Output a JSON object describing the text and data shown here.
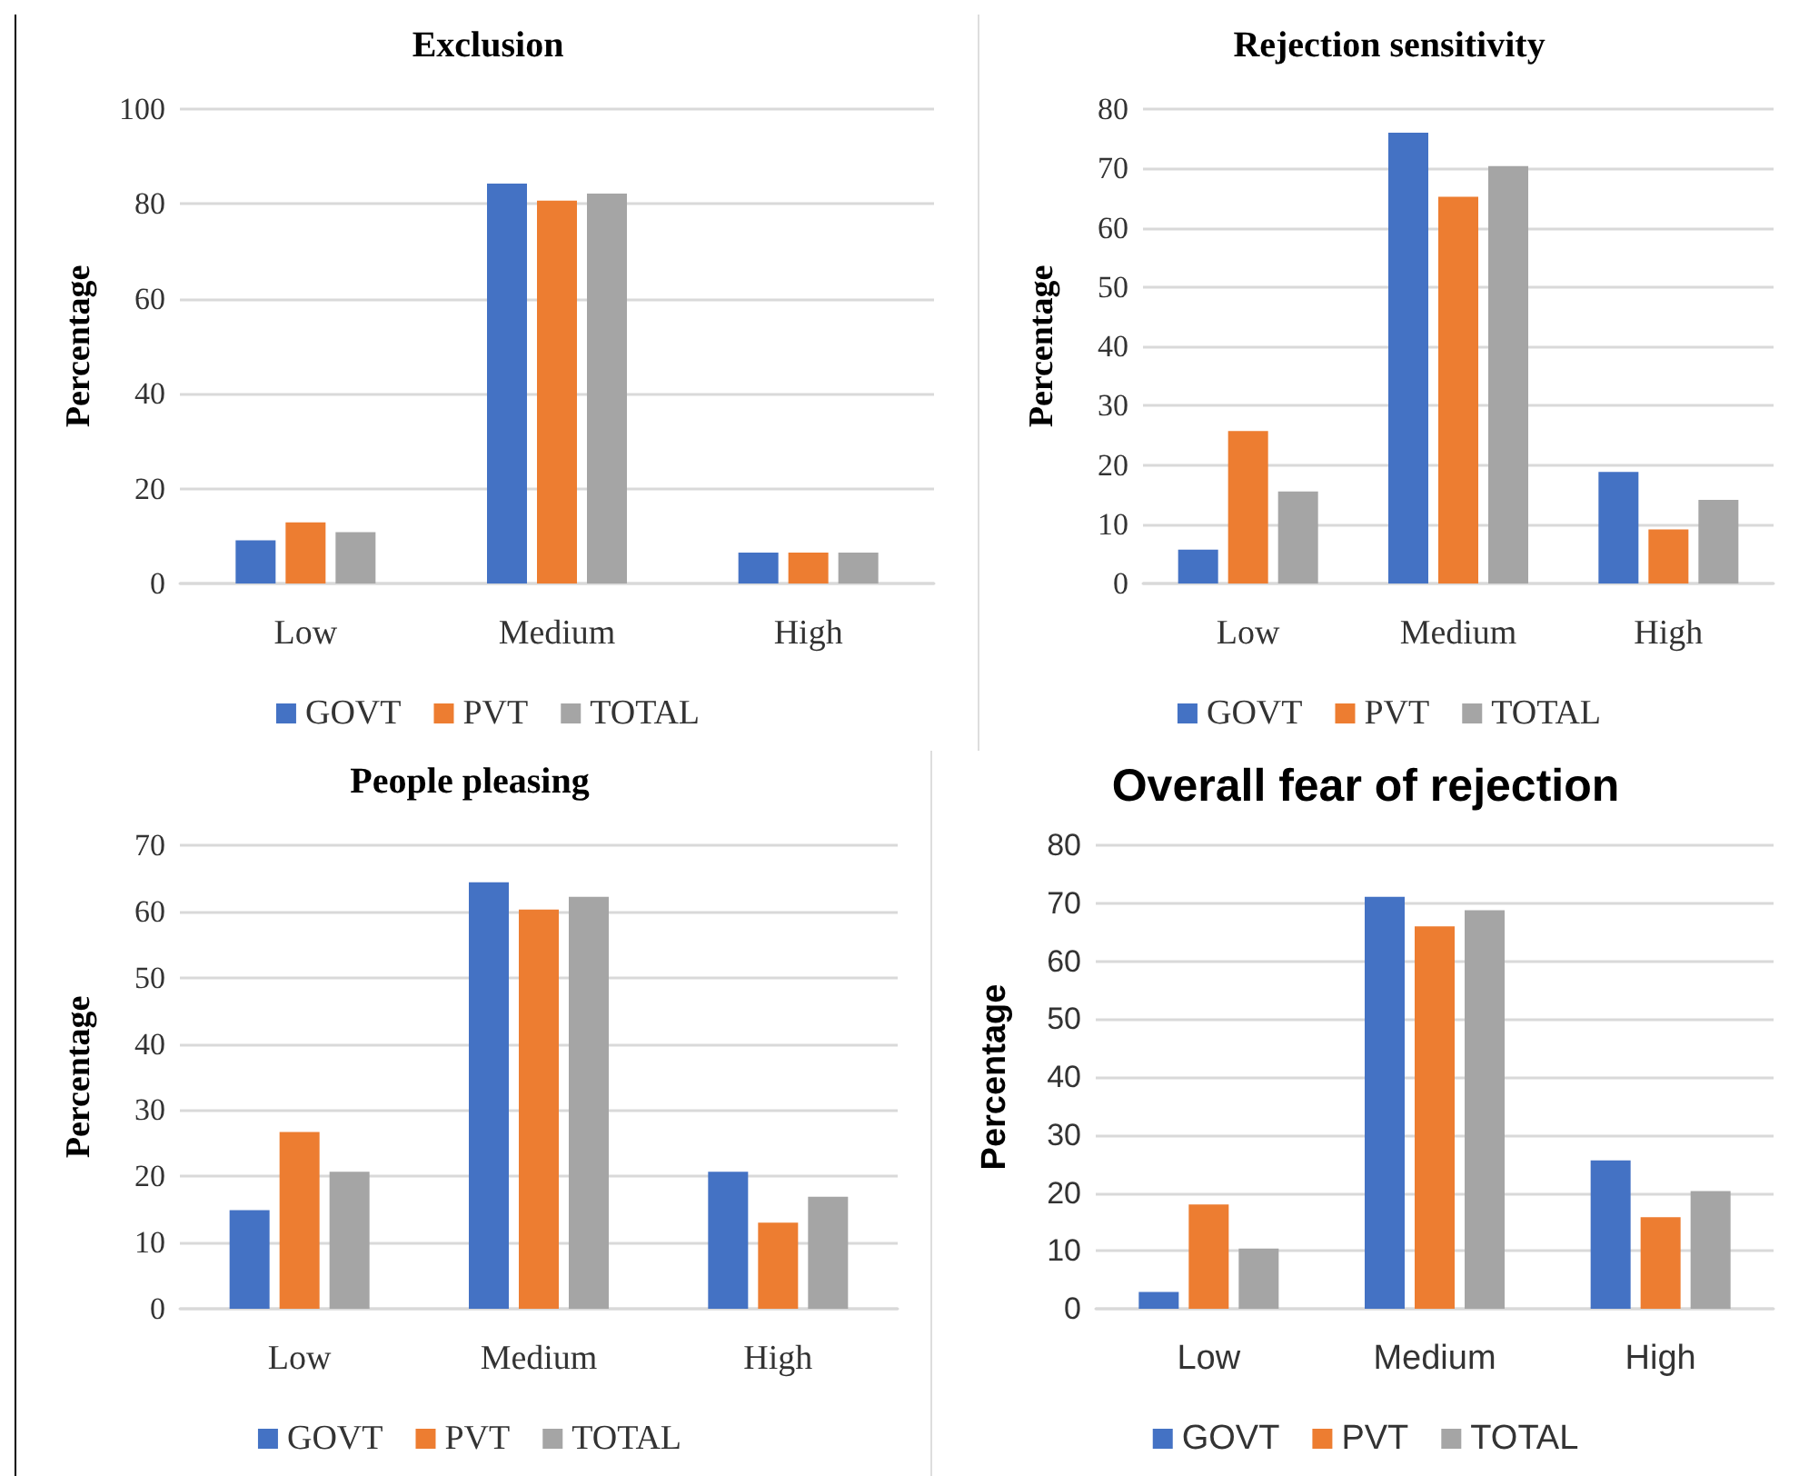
{
  "chart_data": [
    {
      "type": "bar",
      "title": "Exclusion",
      "ylabel": "Percentage",
      "categories": [
        "Low",
        "Medium",
        "High"
      ],
      "series": [
        {
          "name": "GOVT",
          "color": "#4472c4",
          "values": [
            9.1,
            84.3,
            6.5
          ]
        },
        {
          "name": "PVT",
          "color": "#ed7d31",
          "values": [
            12.9,
            80.7,
            6.5
          ]
        },
        {
          "name": "TOTAL",
          "color": "#a5a5a5",
          "values": [
            10.8,
            82.2,
            6.5
          ]
        }
      ],
      "ylim": [
        0,
        100
      ],
      "yticks": [
        0,
        20,
        40,
        60,
        80,
        100
      ],
      "grid": "y",
      "legend": "bottom"
    },
    {
      "type": "bar",
      "title": "Rejection sensitivity",
      "ylabel": "Percentage",
      "categories": [
        "Low",
        "Medium",
        "High"
      ],
      "series": [
        {
          "name": "GOVT",
          "color": "#4472c4",
          "values": [
            5.7,
            76,
            18.8
          ]
        },
        {
          "name": "PVT",
          "color": "#ed7d31",
          "values": [
            25.7,
            65.2,
            9.1
          ]
        },
        {
          "name": "TOTAL",
          "color": "#a5a5a5",
          "values": [
            15.5,
            70.4,
            14.1
          ]
        }
      ],
      "ylim": [
        0,
        80
      ],
      "yticks": [
        0,
        10,
        20,
        30,
        40,
        50,
        60,
        70,
        80
      ],
      "grid": "y",
      "legend": "bottom"
    },
    {
      "type": "bar",
      "title": "People pleasing",
      "ylabel": "Percentage",
      "categories": [
        "Low",
        "Medium",
        "High"
      ],
      "series": [
        {
          "name": "GOVT",
          "color": "#4472c4",
          "values": [
            14.9,
            64.4,
            20.7
          ]
        },
        {
          "name": "PVT",
          "color": "#ed7d31",
          "values": [
            26.7,
            60.3,
            13.0
          ]
        },
        {
          "name": "TOTAL",
          "color": "#a5a5a5",
          "values": [
            20.7,
            62.2,
            16.9
          ]
        }
      ],
      "ylim": [
        0,
        70
      ],
      "yticks": [
        0,
        10,
        20,
        30,
        40,
        50,
        60,
        70
      ],
      "grid": "y",
      "legend": "bottom"
    },
    {
      "type": "bar",
      "title": "Overall fear of rejection",
      "ylabel": "Percentage",
      "categories": [
        "Low",
        "Medium",
        "High"
      ],
      "series": [
        {
          "name": "GOVT",
          "color": "#4472c4",
          "values": [
            2.9,
            71.1,
            25.6
          ]
        },
        {
          "name": "PVT",
          "color": "#ed7d31",
          "values": [
            18,
            66,
            15.8
          ]
        },
        {
          "name": "TOTAL",
          "color": "#a5a5a5",
          "values": [
            10.4,
            68.8,
            20.3
          ]
        }
      ],
      "ylim": [
        0,
        80
      ],
      "yticks": [
        0,
        10,
        20,
        30,
        40,
        50,
        60,
        70,
        80
      ],
      "grid": "y",
      "legend": "bottom"
    }
  ]
}
